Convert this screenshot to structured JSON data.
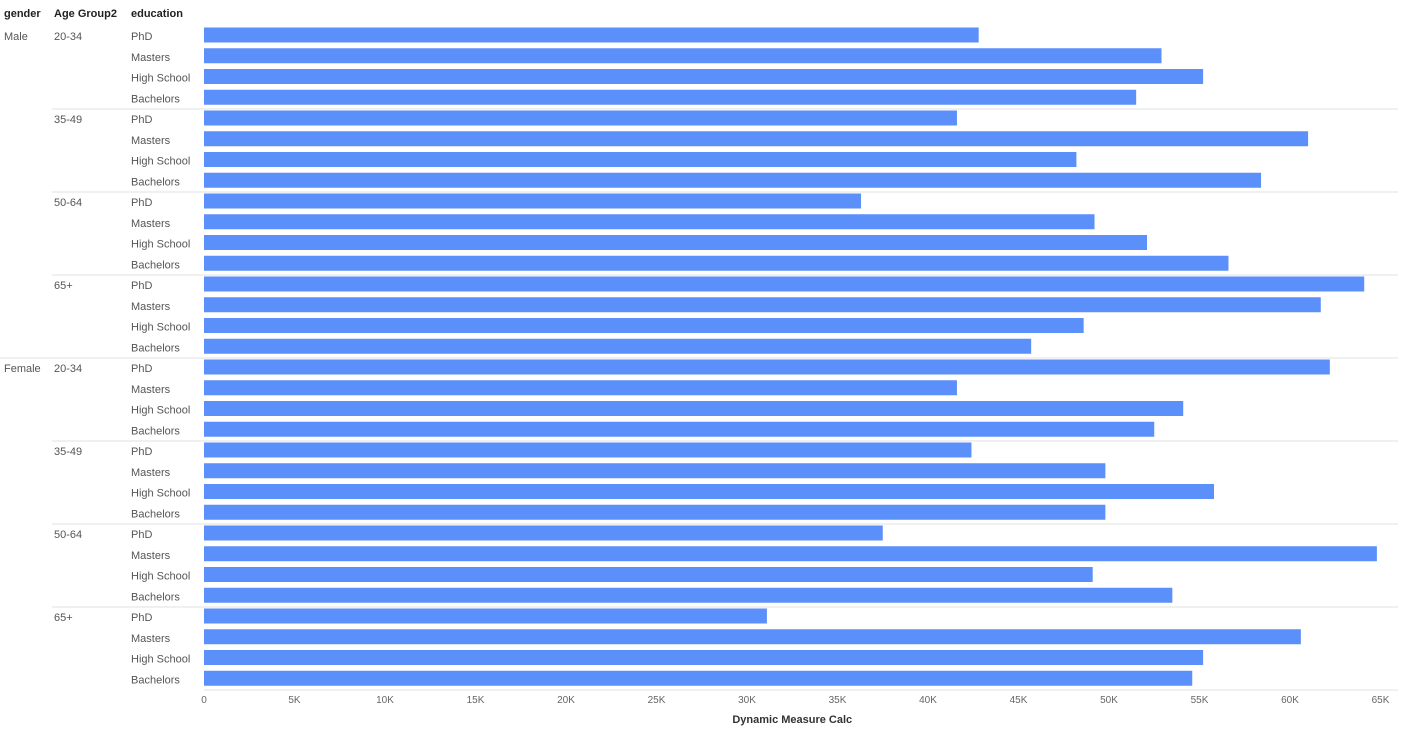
{
  "headers": {
    "gender": "gender",
    "age_group": "Age Group2",
    "education": "education"
  },
  "chart_data": {
    "type": "bar",
    "orientation": "horizontal",
    "xlabel": "Dynamic Measure Calc",
    "xlim": [
      0,
      65000
    ],
    "xticks": [
      0,
      5000,
      10000,
      15000,
      20000,
      25000,
      30000,
      35000,
      40000,
      45000,
      50000,
      55000,
      60000,
      65000
    ],
    "xtick_labels": [
      "0",
      "5K",
      "10K",
      "15K",
      "20K",
      "25K",
      "30K",
      "35K",
      "40K",
      "45K",
      "50K",
      "55K",
      "60K",
      "65K"
    ],
    "bar_color": "#5B8FF9",
    "groups": [
      {
        "gender": "Male",
        "subgroups": [
          {
            "age_group": "20-34",
            "rows": [
              {
                "education": "PhD",
                "value": 42800
              },
              {
                "education": "Masters",
                "value": 52900
              },
              {
                "education": "High School",
                "value": 55200
              },
              {
                "education": "Bachelors",
                "value": 51500
              }
            ]
          },
          {
            "age_group": "35-49",
            "rows": [
              {
                "education": "PhD",
                "value": 41600
              },
              {
                "education": "Masters",
                "value": 61000
              },
              {
                "education": "High School",
                "value": 48200
              },
              {
                "education": "Bachelors",
                "value": 58400
              }
            ]
          },
          {
            "age_group": "50-64",
            "rows": [
              {
                "education": "PhD",
                "value": 36300
              },
              {
                "education": "Masters",
                "value": 49200
              },
              {
                "education": "High School",
                "value": 52100
              },
              {
                "education": "Bachelors",
                "value": 56600
              }
            ]
          },
          {
            "age_group": "65+",
            "rows": [
              {
                "education": "PhD",
                "value": 64100
              },
              {
                "education": "Masters",
                "value": 61700
              },
              {
                "education": "High School",
                "value": 48600
              },
              {
                "education": "Bachelors",
                "value": 45700
              }
            ]
          }
        ]
      },
      {
        "gender": "Female",
        "subgroups": [
          {
            "age_group": "20-34",
            "rows": [
              {
                "education": "PhD",
                "value": 62200
              },
              {
                "education": "Masters",
                "value": 41600
              },
              {
                "education": "High School",
                "value": 54100
              },
              {
                "education": "Bachelors",
                "value": 52500
              }
            ]
          },
          {
            "age_group": "35-49",
            "rows": [
              {
                "education": "PhD",
                "value": 42400
              },
              {
                "education": "Masters",
                "value": 49800
              },
              {
                "education": "High School",
                "value": 55800
              },
              {
                "education": "Bachelors",
                "value": 49800
              }
            ]
          },
          {
            "age_group": "50-64",
            "rows": [
              {
                "education": "PhD",
                "value": 37500
              },
              {
                "education": "Masters",
                "value": 64800
              },
              {
                "education": "High School",
                "value": 49100
              },
              {
                "education": "Bachelors",
                "value": 53500
              }
            ]
          },
          {
            "age_group": "65+",
            "rows": [
              {
                "education": "PhD",
                "value": 31100
              },
              {
                "education": "Masters",
                "value": 60600
              },
              {
                "education": "High School",
                "value": 55200
              },
              {
                "education": "Bachelors",
                "value": 54600
              }
            ]
          }
        ]
      }
    ]
  }
}
